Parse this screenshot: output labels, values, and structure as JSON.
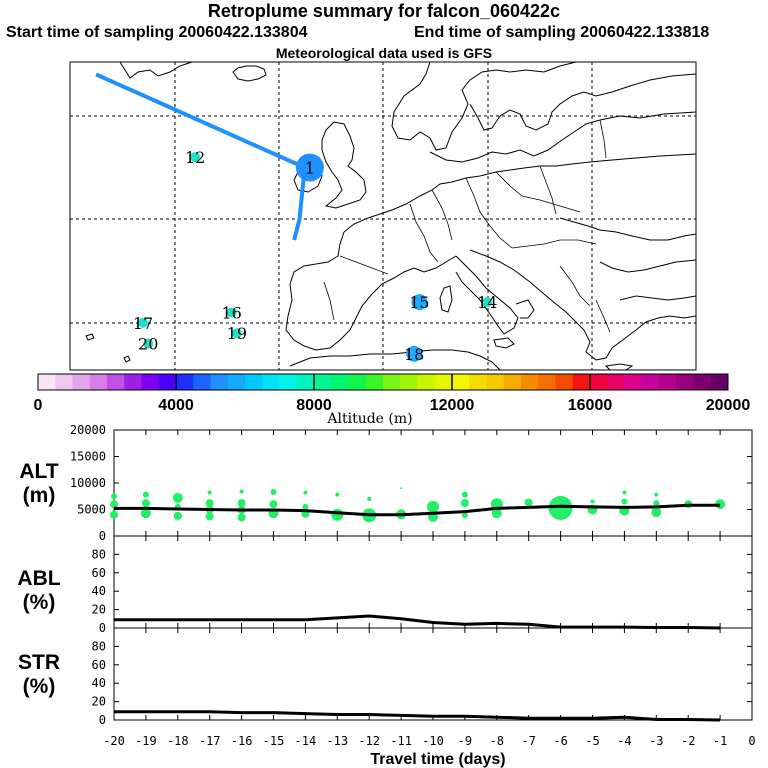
{
  "titles": {
    "main": "Retroplume summary for falcon_060422c",
    "start": "Start time of sampling 20060422.133804",
    "end": "End time of sampling 20060422.133818",
    "met": "Meteorological data used is GFS"
  },
  "colors": {
    "track": "#1e90ff",
    "cluster": "#22ee66",
    "stop": "#1fe3c8",
    "line": "#000000"
  },
  "map": {
    "track_lonlat": [
      [
        -45,
        64
      ],
      [
        -5,
        55
      ],
      [
        -6,
        50
      ],
      [
        -7,
        48
      ]
    ],
    "clusters": [
      {
        "label": "1",
        "lon": -4,
        "lat": 55,
        "size": "large"
      },
      {
        "label": "12",
        "lon": -26,
        "lat": 56,
        "size": "small"
      },
      {
        "label": "14",
        "lon": 30,
        "lat": 42,
        "size": "small"
      },
      {
        "label": "15",
        "lon": 17,
        "lat": 42,
        "size": "medium"
      },
      {
        "label": "16",
        "lon": -19,
        "lat": 41,
        "size": "small"
      },
      {
        "label": "17",
        "lon": -36,
        "lat": 40,
        "size": "small"
      },
      {
        "label": "18",
        "lon": 16,
        "lat": 37,
        "size": "medium"
      },
      {
        "label": "19",
        "lon": -18,
        "lat": 39,
        "size": "small"
      },
      {
        "label": "20",
        "lon": -35,
        "lat": 38,
        "size": "small"
      }
    ]
  },
  "colorbar": {
    "title": "Altitude (m)",
    "tick_labels": [
      "0",
      "4000",
      "8000",
      "12000",
      "16000",
      "20000"
    ],
    "colors": [
      "#f7e6f7",
      "#efc8f0",
      "#e3a6ec",
      "#d67ee6",
      "#c350e6",
      "#a01fe6",
      "#7d00ee",
      "#4b00ff",
      "#1e2fff",
      "#1e64ff",
      "#1e90ff",
      "#14aaff",
      "#00c8ff",
      "#00e1f5",
      "#00f5e6",
      "#00f5be",
      "#00f596",
      "#00f56e",
      "#14f54b",
      "#3cf528",
      "#78f514",
      "#a0f50a",
      "#c8f500",
      "#e6f500",
      "#f5f500",
      "#f5dc00",
      "#f5c800",
      "#f5aa00",
      "#f58c00",
      "#f56e00",
      "#f54b00",
      "#f51414",
      "#f0003c",
      "#e60064",
      "#dc008c",
      "#c8009b",
      "#b4008c",
      "#96007d",
      "#7d006e",
      "#640064"
    ]
  },
  "chart_data": [
    {
      "type": "line",
      "title": "ALT (m)",
      "xlabel": "Travel time (days)",
      "ylabel": "ALT (m)",
      "ylim": [
        0,
        20000
      ],
      "y_ticks": [
        "0",
        "5000",
        "10000",
        "15000",
        "20000"
      ],
      "x_ticks": [
        "-20",
        "-19",
        "-18",
        "-17",
        "-16",
        "-15",
        "-14",
        "-13",
        "-12",
        "-11",
        "-10",
        "-9",
        "-8",
        "-7",
        "-6",
        "-5",
        "-4",
        "-3",
        "-2",
        "-1",
        "0"
      ],
      "x": [
        -20,
        -19,
        -18,
        -17,
        -16,
        -15,
        -14,
        -13,
        -12,
        -11,
        -10,
        -9,
        -8,
        -7,
        -6,
        -5,
        -4,
        -3,
        -2,
        -1
      ],
      "values": [
        5200,
        5200,
        5100,
        5000,
        4900,
        4900,
        4800,
        4400,
        4000,
        4000,
        4300,
        4600,
        5200,
        5400,
        5600,
        5500,
        5400,
        5500,
        5800,
        5800
      ],
      "cluster_points": [
        {
          "x": -20,
          "y": 7500,
          "r": 3
        },
        {
          "x": -20,
          "y": 6000,
          "r": 4
        },
        {
          "x": -20,
          "y": 4000,
          "r": 4
        },
        {
          "x": -19,
          "y": 7800,
          "r": 3
        },
        {
          "x": -19,
          "y": 6200,
          "r": 4
        },
        {
          "x": -19,
          "y": 4300,
          "r": 5
        },
        {
          "x": -18,
          "y": 7200,
          "r": 5
        },
        {
          "x": -18,
          "y": 5500,
          "r": 3
        },
        {
          "x": -18,
          "y": 3800,
          "r": 4
        },
        {
          "x": -17,
          "y": 8200,
          "r": 2
        },
        {
          "x": -17,
          "y": 6200,
          "r": 4
        },
        {
          "x": -17,
          "y": 5000,
          "r": 4
        },
        {
          "x": -17,
          "y": 3700,
          "r": 4
        },
        {
          "x": -16,
          "y": 8400,
          "r": 2
        },
        {
          "x": -16,
          "y": 6200,
          "r": 4
        },
        {
          "x": -16,
          "y": 4900,
          "r": 4
        },
        {
          "x": -16,
          "y": 3500,
          "r": 4
        },
        {
          "x": -15,
          "y": 8300,
          "r": 3
        },
        {
          "x": -15,
          "y": 6000,
          "r": 4
        },
        {
          "x": -15,
          "y": 4300,
          "r": 5
        },
        {
          "x": -14,
          "y": 8200,
          "r": 2
        },
        {
          "x": -14,
          "y": 5500,
          "r": 3
        },
        {
          "x": -14,
          "y": 4200,
          "r": 4
        },
        {
          "x": -13,
          "y": 7800,
          "r": 2
        },
        {
          "x": -13,
          "y": 4000,
          "r": 6
        },
        {
          "x": -12,
          "y": 7000,
          "r": 2
        },
        {
          "x": -12,
          "y": 3900,
          "r": 7
        },
        {
          "x": -11,
          "y": 9000,
          "r": 1
        },
        {
          "x": -11,
          "y": 4100,
          "r": 5
        },
        {
          "x": -10,
          "y": 5500,
          "r": 6
        },
        {
          "x": -10,
          "y": 3600,
          "r": 5
        },
        {
          "x": -9,
          "y": 7800,
          "r": 3
        },
        {
          "x": -9,
          "y": 6200,
          "r": 4
        },
        {
          "x": -9,
          "y": 3900,
          "r": 3
        },
        {
          "x": -8,
          "y": 6000,
          "r": 6
        },
        {
          "x": -8,
          "y": 4300,
          "r": 5
        },
        {
          "x": -7,
          "y": 6300,
          "r": 4
        },
        {
          "x": -6,
          "y": 5300,
          "r": 12
        },
        {
          "x": -5,
          "y": 6500,
          "r": 2
        },
        {
          "x": -5,
          "y": 5000,
          "r": 5
        },
        {
          "x": -4,
          "y": 8200,
          "r": 2
        },
        {
          "x": -4,
          "y": 6500,
          "r": 3
        },
        {
          "x": -4,
          "y": 4800,
          "r": 5
        },
        {
          "x": -3,
          "y": 7800,
          "r": 2
        },
        {
          "x": -3,
          "y": 6200,
          "r": 3
        },
        {
          "x": -3,
          "y": 4500,
          "r": 5
        },
        {
          "x": -2,
          "y": 6000,
          "r": 4
        },
        {
          "x": -1,
          "y": 6000,
          "r": 5
        }
      ]
    },
    {
      "type": "line",
      "title": "ABL (%)",
      "ylabel": "ABL (%)",
      "ylim": [
        0,
        100
      ],
      "y_ticks": [
        "0",
        "20",
        "40",
        "60",
        "80"
      ],
      "x": [
        -20,
        -19,
        -18,
        -17,
        -16,
        -15,
        -14,
        -13,
        -12,
        -11,
        -10,
        -9,
        -8,
        -7,
        -6,
        -5,
        -4,
        -3,
        -2,
        -1
      ],
      "values": [
        9,
        9,
        9,
        9,
        9,
        9,
        9,
        11,
        13,
        10,
        6,
        4,
        5,
        4,
        1,
        1,
        1,
        0.5,
        0.5,
        0
      ]
    },
    {
      "type": "line",
      "title": "STR (%)",
      "ylabel": "STR (%)",
      "ylim": [
        0,
        100
      ],
      "y_ticks": [
        "0",
        "20",
        "40",
        "60",
        "80"
      ],
      "x": [
        -20,
        -19,
        -18,
        -17,
        -16,
        -15,
        -14,
        -13,
        -12,
        -11,
        -10,
        -9,
        -8,
        -7,
        -6,
        -5,
        -4,
        -3,
        -2,
        -1
      ],
      "values": [
        9,
        9,
        9,
        9,
        8,
        8,
        7,
        6,
        6,
        5,
        4,
        4,
        3,
        2,
        2,
        2,
        3,
        0.5,
        0.5,
        0
      ]
    }
  ],
  "panels": {
    "alt": {
      "label1": "ALT",
      "label2": "(m)"
    },
    "abl": {
      "label1": "ABL",
      "label2": "(%)"
    },
    "str": {
      "label1": "STR",
      "label2": "(%)"
    }
  }
}
